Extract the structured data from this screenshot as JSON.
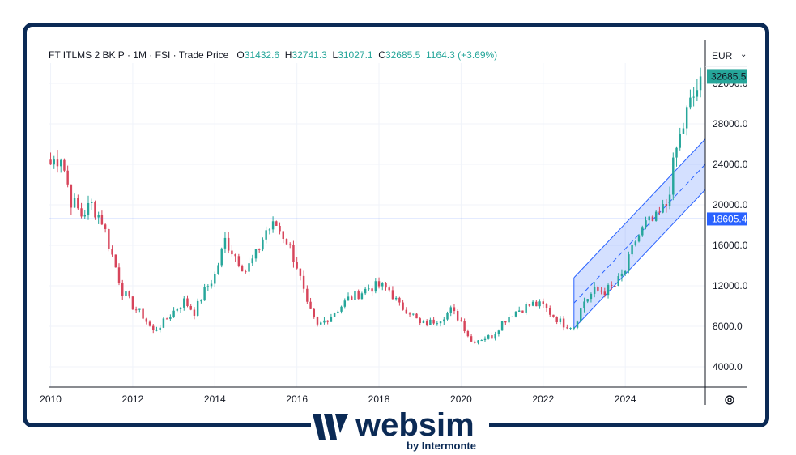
{
  "header": {
    "instrument": "FT ITLMS 2 BK P",
    "interval": "1M",
    "exchange": "FSI",
    "price_type": "Trade Price",
    "open_label": "O",
    "open": "31432.6",
    "high_label": "H",
    "high": "32741.3",
    "low_label": "L",
    "low": "31027.1",
    "close_label": "C",
    "close": "32685.5",
    "change": "1164.3 (+3.69%)"
  },
  "currency": "EUR",
  "logo": {
    "word": "websim",
    "sub": "by Intermonte"
  },
  "colors": {
    "up": "#26a69a",
    "down": "#d7455b",
    "line": "#2962ff",
    "channel": "#2962ff",
    "frame": "#0b2a55"
  },
  "chart_data": {
    "type": "candlestick",
    "xlabel": "",
    "ylabel": "",
    "x_ticks": [
      "2010",
      "2012",
      "2014",
      "2016",
      "2018",
      "2020",
      "2022",
      "2024"
    ],
    "y_ticks": [
      "4000.0",
      "8000.0",
      "12000.0",
      "16000.0",
      "20000.0",
      "24000.0",
      "28000.0",
      "32000.0"
    ],
    "ylim": [
      2000,
      34000
    ],
    "xlim": [
      2009.95,
      2025.95
    ],
    "last_price_label": "32685.5",
    "horizontal_line": {
      "value": 18605.4,
      "label": "18605.4"
    },
    "channel": {
      "start_date": 2022.75,
      "end_date": 2025.95,
      "upper_start": 12800,
      "upper_end": 26500,
      "mid_start": 10300,
      "mid_end": 24000,
      "lower_start": 7800,
      "lower_end": 21500
    },
    "grid": true,
    "anchors": [
      [
        2010.0,
        24000
      ],
      [
        2010.25,
        25000
      ],
      [
        2010.5,
        20500
      ],
      [
        2010.75,
        19000
      ],
      [
        2011.0,
        20000
      ],
      [
        2011.25,
        18500
      ],
      [
        2011.5,
        15000
      ],
      [
        2011.75,
        11500
      ],
      [
        2012.0,
        10000
      ],
      [
        2012.25,
        9000
      ],
      [
        2012.5,
        7500
      ],
      [
        2012.75,
        8400
      ],
      [
        2013.0,
        9500
      ],
      [
        2013.25,
        10500
      ],
      [
        2013.5,
        9400
      ],
      [
        2013.75,
        11500
      ],
      [
        2014.0,
        13000
      ],
      [
        2014.25,
        16500
      ],
      [
        2014.5,
        15000
      ],
      [
        2014.75,
        13500
      ],
      [
        2015.0,
        15000
      ],
      [
        2015.25,
        17500
      ],
      [
        2015.5,
        18000
      ],
      [
        2015.75,
        16500
      ],
      [
        2016.0,
        14000
      ],
      [
        2016.25,
        10000
      ],
      [
        2016.5,
        8000
      ],
      [
        2016.75,
        8800
      ],
      [
        2017.0,
        9700
      ],
      [
        2017.25,
        10700
      ],
      [
        2017.5,
        11200
      ],
      [
        2017.75,
        11800
      ],
      [
        2018.0,
        12000
      ],
      [
        2018.25,
        11600
      ],
      [
        2018.5,
        10000
      ],
      [
        2018.75,
        9500
      ],
      [
        2019.0,
        8200
      ],
      [
        2019.25,
        8400
      ],
      [
        2019.5,
        8800
      ],
      [
        2019.75,
        9600
      ],
      [
        2020.0,
        8500
      ],
      [
        2020.25,
        6500
      ],
      [
        2020.5,
        6800
      ],
      [
        2020.75,
        7000
      ],
      [
        2021.0,
        8400
      ],
      [
        2021.25,
        9300
      ],
      [
        2021.5,
        9800
      ],
      [
        2021.75,
        10200
      ],
      [
        2022.0,
        10000
      ],
      [
        2022.25,
        9000
      ],
      [
        2022.5,
        8200
      ],
      [
        2022.75,
        8000
      ],
      [
        2023.0,
        10500
      ],
      [
        2023.25,
        11500
      ],
      [
        2023.5,
        11500
      ],
      [
        2023.75,
        12000
      ],
      [
        2024.0,
        13500
      ],
      [
        2024.25,
        16500
      ],
      [
        2024.5,
        18000
      ],
      [
        2024.75,
        18500
      ],
      [
        2025.0,
        20000
      ],
      [
        2025.25,
        25500
      ],
      [
        2025.5,
        29000
      ],
      [
        2025.75,
        31500
      ],
      [
        2025.92,
        32685.5
      ]
    ]
  }
}
